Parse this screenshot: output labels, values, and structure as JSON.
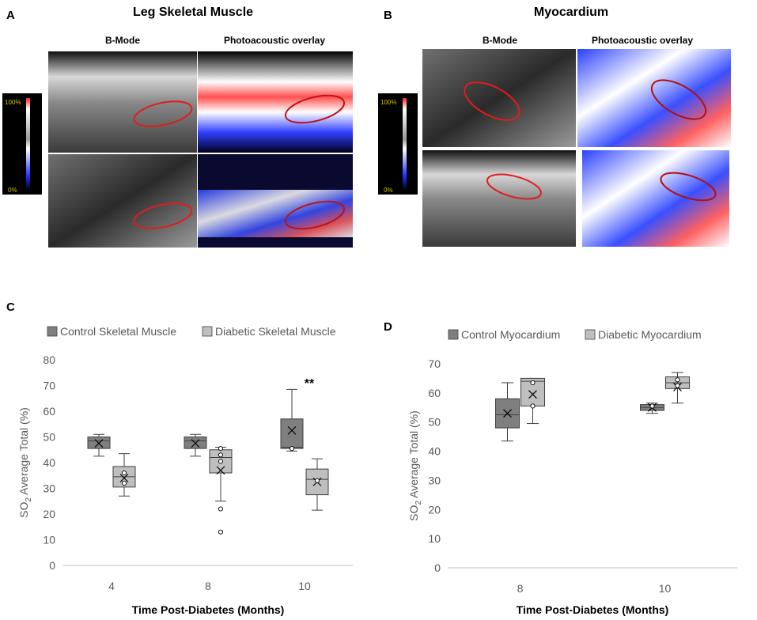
{
  "panels": {
    "A": {
      "letter": "A",
      "title": "Leg Skeletal Muscle",
      "col_labels": [
        "B-Mode",
        "Photoacoustic overlay"
      ],
      "colorbar": {
        "top": "100%",
        "bottom": "0%"
      }
    },
    "B": {
      "letter": "B",
      "title": "Myocardium",
      "col_labels": [
        "B-Mode",
        "Photoacoustic overlay"
      ],
      "colorbar": {
        "top": "100%",
        "bottom": "0%"
      }
    },
    "C": {
      "letter": "C"
    },
    "D": {
      "letter": "D"
    }
  },
  "chart_data": [
    {
      "panel": "C",
      "type": "box",
      "categories": [
        "4",
        "8",
        "10"
      ],
      "xlabel": "Time Post-Diabetes (Months)",
      "ylabel": {
        "main": "SO",
        "sub": "2",
        "rest": " Average Total (%)"
      },
      "ylim": [
        0,
        80
      ],
      "yticks": [
        0,
        10,
        20,
        30,
        40,
        50,
        60,
        70,
        80
      ],
      "grid": false,
      "legend_position": "top-left",
      "annotations": [
        {
          "text": "**",
          "category": "10",
          "y": 73
        }
      ],
      "series": [
        {
          "name": "Control Skeletal Muscle",
          "color": "#7f7f7f",
          "boxes": [
            {
              "min": 42.5,
              "q1": 45.5,
              "median": 48.5,
              "q3": 50,
              "max": 51,
              "mean": 47.5,
              "points": []
            },
            {
              "min": 42.5,
              "q1": 45.5,
              "median": 48.5,
              "q3": 50,
              "max": 51,
              "mean": 47.5,
              "points": []
            },
            {
              "min": 44.5,
              "q1": 45.5,
              "median": 46,
              "q3": 57,
              "max": 68.5,
              "mean": 52.5,
              "points": [
                45.5
              ]
            }
          ]
        },
        {
          "name": "Diabetic Skeletal Muscle",
          "color": "#bfbfbf",
          "boxes": [
            {
              "min": 27,
              "q1": 30.5,
              "median": 34.5,
              "q3": 38.5,
              "max": 43.5,
              "mean": 34,
              "points": [
                36,
                32
              ]
            },
            {
              "min": 25,
              "q1": 36,
              "median": 42,
              "q3": 45,
              "max": 46,
              "mean": 37,
              "points": [
                45.5,
                43,
                40.5,
                22,
                13
              ]
            },
            {
              "min": 21.5,
              "q1": 27.5,
              "median": 33.5,
              "q3": 37.5,
              "max": 41.5,
              "mean": 32.5,
              "points": [
                33
              ]
            }
          ]
        }
      ]
    },
    {
      "panel": "D",
      "type": "box",
      "categories": [
        "8",
        "10"
      ],
      "xlabel": "Time Post-Diabetes (Months)",
      "ylabel": {
        "main": "SO",
        "sub": "2",
        "rest": " Average Total (%)"
      },
      "ylim": [
        0,
        70
      ],
      "yticks": [
        0,
        10,
        20,
        30,
        40,
        50,
        60,
        70
      ],
      "grid": false,
      "legend_position": "top-left",
      "annotations": [],
      "series": [
        {
          "name": "Control Myocardium",
          "color": "#7f7f7f",
          "boxes": [
            {
              "min": 43.5,
              "q1": 48,
              "median": 52.5,
              "q3": 58,
              "max": 63.5,
              "mean": 53,
              "points": []
            },
            {
              "min": 53,
              "q1": 54,
              "median": 55,
              "q3": 56,
              "max": 56.5,
              "mean": 55,
              "points": [
                55.5
              ]
            }
          ]
        },
        {
          "name": "Diabetic Myocardium",
          "color": "#bfbfbf",
          "boxes": [
            {
              "min": 49.5,
              "q1": 55.5,
              "median": 64,
              "q3": 65,
              "max": 65,
              "mean": 59.5,
              "points": [
                63.5,
                55.5
              ]
            },
            {
              "min": 56.5,
              "q1": 61.5,
              "median": 63.5,
              "q3": 65.5,
              "max": 67,
              "mean": 62,
              "points": [
                64.5,
                62.5
              ]
            }
          ]
        }
      ]
    }
  ]
}
